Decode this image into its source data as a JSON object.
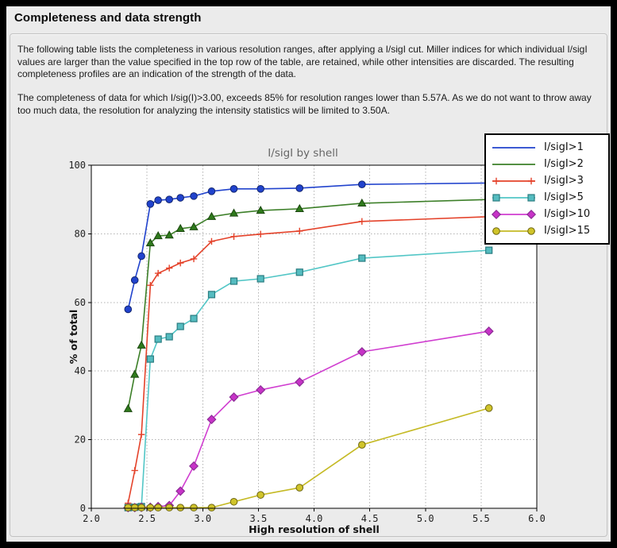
{
  "window": {
    "title": "Completeness and data strength"
  },
  "panel": {
    "paragraph1": "The following table lists the completeness in various resolution ranges, after applying a I/sigI cut. Miller indices for which individual I/sigI values are larger than the value specified in the top row of the table, are retained, while other intensities are discarded. The resulting completeness profiles are an indication of the strength of the data.",
    "paragraph2": "The completeness of data for which I/sig(I)>3.00, exceeds  85% for resolution ranges lower than 5.57A. As we do not want to throw away too much data, the resolution for analyzing the intensity statistics will be limited to 3.50A."
  },
  "theme": {
    "frame": "#000000",
    "window_bg": "#ebebeb",
    "panel_border": "#c2c2c2",
    "plot_bg": "#ffffff",
    "grid": "#b2b2b2",
    "spine": "#000000",
    "tick_text": "#222222",
    "title_text": "#666666",
    "axis_label_text": "#111111",
    "legend_bg": "#ffffff",
    "legend_border": "#000000"
  },
  "chart_data": {
    "type": "line",
    "title": "I/sigI by shell",
    "xlabel": "High resolution of shell",
    "ylabel": "% of total",
    "xlim": [
      2.0,
      6.0
    ],
    "ylim": [
      0,
      100
    ],
    "xticks": [
      2.0,
      2.5,
      3.0,
      3.5,
      4.0,
      4.5,
      5.0,
      5.5,
      6.0
    ],
    "yticks": [
      0,
      20,
      40,
      60,
      80,
      100
    ],
    "grid": true,
    "legend_position": "upper right",
    "x": [
      2.33,
      2.39,
      2.45,
      2.53,
      2.6,
      2.7,
      2.8,
      2.92,
      3.08,
      3.28,
      3.52,
      3.87,
      4.43,
      5.57
    ],
    "series": [
      {
        "label": "I/sigI>1",
        "color": "#2143cd",
        "marker": "circle",
        "marker_fill": "#2143cd",
        "marker_edge": "#13266f",
        "legend_markers": false,
        "values": [
          58,
          66.5,
          73.5,
          88.7,
          89.8,
          90,
          90.5,
          91,
          92.4,
          93.1,
          93.1,
          93.3,
          94.4,
          94.8
        ]
      },
      {
        "label": "I/sigI>2",
        "color": "#3c7f28",
        "marker": "triangle",
        "marker_fill": "#2f7a1c",
        "marker_edge": "#1b470f",
        "legend_markers": false,
        "values": [
          29,
          39,
          47.5,
          77.3,
          79.4,
          79.6,
          81.5,
          82,
          85,
          86,
          86.8,
          87.3,
          88.9,
          90
        ]
      },
      {
        "label": "I/sigI>3",
        "color": "#e4422a",
        "marker": "plus",
        "marker_fill": "#e4422a",
        "marker_edge": "#e4422a",
        "legend_markers": true,
        "values": [
          1.5,
          11,
          21.5,
          65,
          68.5,
          70,
          71.5,
          72.7,
          77.8,
          79.2,
          79.9,
          80.8,
          83.6,
          85
        ]
      },
      {
        "label": "I/sigI>5",
        "color": "#52c6c6",
        "marker": "square",
        "marker_fill": "#55bcc0",
        "marker_edge": "#2a7c80",
        "legend_markers": true,
        "values": [
          0.2,
          0.3,
          0.5,
          43.5,
          49.3,
          50,
          53,
          55.3,
          62.3,
          66.2,
          66.9,
          68.8,
          72.9,
          75.2
        ]
      },
      {
        "label": "I/sigI>10",
        "color": "#d03ed0",
        "marker": "diamond",
        "marker_fill": "#c733c7",
        "marker_edge": "#8c2d96",
        "legend_markers": true,
        "values": [
          0.2,
          0.2,
          0.3,
          0.3,
          0.5,
          0.8,
          5,
          12.3,
          25.9,
          32.4,
          34.5,
          36.8,
          45.6,
          51.6
        ]
      },
      {
        "label": "I/sigI>15",
        "color": "#c5ba25",
        "marker": "circle",
        "marker_fill": "#d0c42a",
        "marker_edge": "#6e6612",
        "legend_markers": true,
        "values": [
          0.2,
          0.2,
          0.2,
          0.2,
          0.2,
          0.2,
          0.2,
          0.2,
          0.2,
          1.9,
          3.9,
          6,
          18.5,
          29.2
        ]
      }
    ]
  }
}
